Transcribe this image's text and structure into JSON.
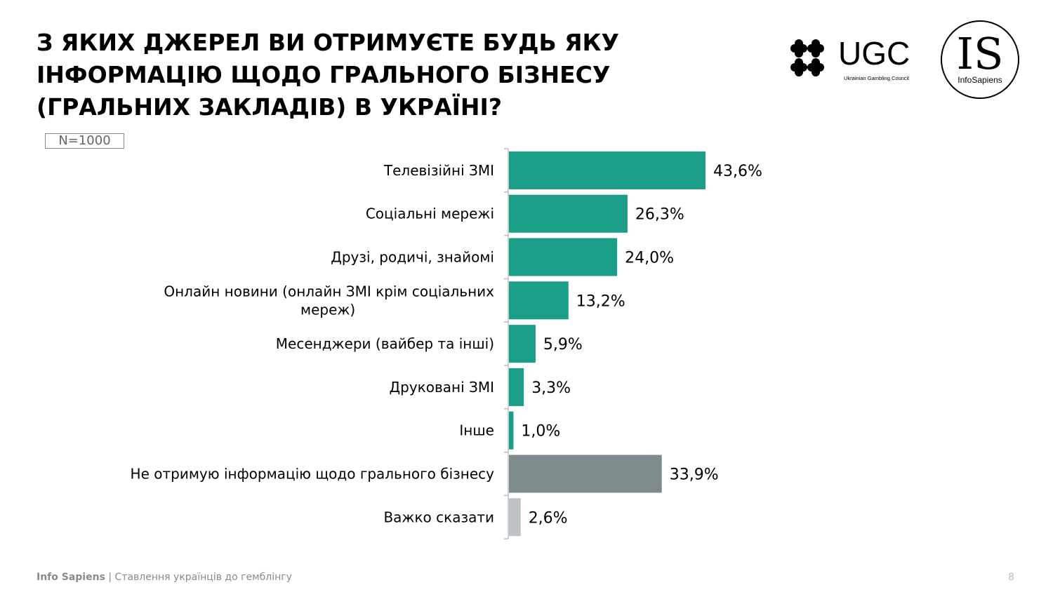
{
  "title": "З ЯКИХ ДЖЕРЕЛ ВИ ОТРИМУЄТЕ БУДЬ ЯКУ\nІНФОРМАЦІЮ ЩОДО ГРАЛЬНОГО БІЗНЕСУ\n(ГРАЛЬНИХ ЗАКЛАДІВ) В УКРАЇНІ?",
  "sample": "N=1000",
  "logos": {
    "ugc_text": "UGC",
    "ugc_subtitle": "Ukrainian Gambling Council",
    "is_text": "IS",
    "is_subtitle": "InfoSapiens"
  },
  "footer": {
    "brand": "Info Sapiens",
    "separator": " | ",
    "subtitle": "Ставлення українців до гемблінгу",
    "page": "8"
  },
  "colors": {
    "primary": "#1a9e87",
    "none": "#7f8c8d",
    "hard": "#bdc3c7"
  },
  "chart_data": {
    "type": "bar",
    "orientation": "horizontal",
    "categories": [
      [
        "Телевізійні ЗМІ"
      ],
      [
        "Соціальні мережі"
      ],
      [
        "Друзі, родичі, знайомі"
      ],
      [
        "Онлайн новини (онлайн ЗМІ крім соціальних",
        "мереж)"
      ],
      [
        "Месенджери (вайбер та інші)"
      ],
      [
        "Друковані ЗМІ"
      ],
      [
        "Інше"
      ],
      [
        "Не отримую інформацію щодо грального бізнесу"
      ],
      [
        "Важко сказати"
      ]
    ],
    "values": [
      43.6,
      26.3,
      24.0,
      13.2,
      5.9,
      3.3,
      1.0,
      33.9,
      2.6
    ],
    "labels": [
      "43,6%",
      "26,3%",
      "24,0%",
      "13,2%",
      "5,9%",
      "3,3%",
      "1,0%",
      "33,9%",
      "2,6%"
    ],
    "bar_colors": [
      "#1a9e87",
      "#1a9e87",
      "#1a9e87",
      "#1a9e87",
      "#1a9e87",
      "#1a9e87",
      "#1a9e87",
      "#7f8c8d",
      "#bdc3c7"
    ],
    "unit": "%",
    "xlim": [
      0,
      43.6
    ]
  }
}
